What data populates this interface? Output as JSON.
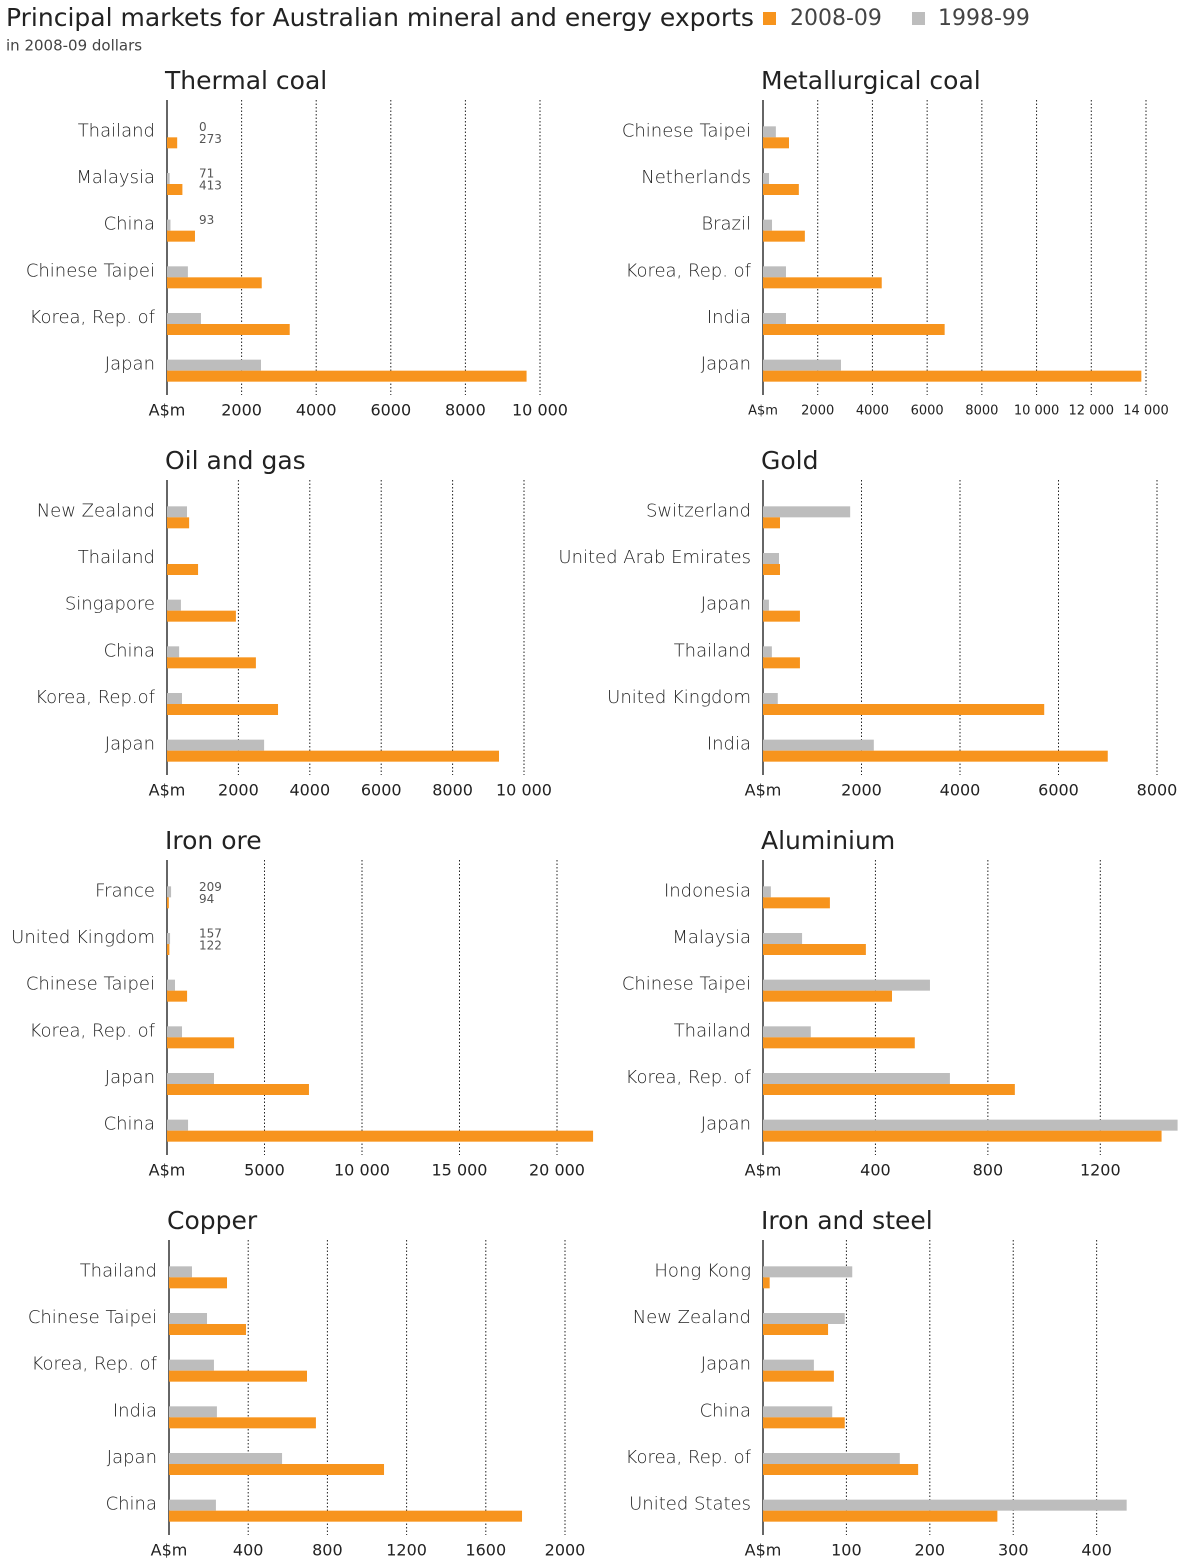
{
  "title": "Principal markets for Australian mineral and energy exports",
  "subtitle": "in 2008-09 dollars",
  "chart_data": [
    {
      "type": "bar",
      "orientation": "horizontal",
      "title": "Thermal coal",
      "categories": [
        "Thailand",
        "Malaysia",
        "China",
        "Chinese  Taipei",
        "Korea, Rep. of",
        "Japan"
      ],
      "series": [
        {
          "name": "2008-09",
          "color": "#f7941d",
          "values": [
            273,
            413,
            750,
            2540,
            3290,
            9640
          ],
          "value_labels": [
            "273",
            "413",
            null,
            null,
            null,
            null
          ]
        },
        {
          "name": "1998-99",
          "color": "#bdbdbd",
          "values": [
            0,
            71,
            93,
            560,
            910,
            2520
          ],
          "value_labels": [
            "0",
            "71",
            "93",
            null,
            null,
            null
          ]
        }
      ],
      "xlim": [
        0,
        10000
      ],
      "xticks": [
        {
          "value": 0,
          "label": "A$m"
        },
        2000,
        4000,
        6000,
        8000,
        {
          "value": 10000,
          "label": "10 000"
        }
      ],
      "grid": true
    },
    {
      "type": "bar",
      "orientation": "horizontal",
      "title": "Metallurgical coal",
      "categories": [
        "Chinese Taipei",
        "Netherlands",
        "Brazil",
        "Korea, Rep. of",
        "India",
        "Japan"
      ],
      "series": [
        {
          "name": "2008-09",
          "color": "#f7941d",
          "values": [
            950,
            1310,
            1530,
            4340,
            6640,
            13830
          ]
        },
        {
          "name": "1998-99",
          "color": "#bdbdbd",
          "values": [
            470,
            220,
            330,
            840,
            840,
            2850
          ]
        }
      ],
      "xlim": [
        0,
        14000
      ],
      "xticks": [
        {
          "value": 0,
          "label": "A$m"
        },
        2000,
        4000,
        6000,
        8000,
        {
          "value": 10000,
          "label": "10 000"
        },
        {
          "value": 12000,
          "label": "12 000"
        },
        {
          "value": 14000,
          "label": "14 000"
        }
      ],
      "grid": true
    },
    {
      "type": "bar",
      "orientation": "horizontal",
      "title": "Oil and gas",
      "categories": [
        "New Zealand",
        "Thailand",
        "Singapore",
        "China",
        "Korea, Rep.of",
        "Japan"
      ],
      "series": [
        {
          "name": "2008-09",
          "color": "#f7941d",
          "values": [
            620,
            870,
            1930,
            2490,
            3110,
            9300
          ]
        },
        {
          "name": "1998-99",
          "color": "#bdbdbd",
          "values": [
            560,
            0,
            390,
            340,
            420,
            2720
          ]
        }
      ],
      "xlim": [
        0,
        10000
      ],
      "xticks": [
        {
          "value": 0,
          "label": "A$m"
        },
        2000,
        4000,
        6000,
        8000,
        {
          "value": 10000,
          "label": "10 000"
        }
      ],
      "grid": true
    },
    {
      "type": "bar",
      "orientation": "horizontal",
      "title": "Gold",
      "categories": [
        "Switzerland",
        "United Arab Emirates",
        "Japan",
        "Thailand",
        "United Kingdom",
        "India"
      ],
      "series": [
        {
          "name": "2008-09",
          "color": "#f7941d",
          "values": [
            345,
            345,
            750,
            750,
            5710,
            7000
          ]
        },
        {
          "name": "1998-99",
          "color": "#bdbdbd",
          "values": [
            1770,
            325,
            120,
            180,
            300,
            2250
          ]
        }
      ],
      "xlim": [
        0,
        8000
      ],
      "xticks": [
        {
          "value": 0,
          "label": "A$m"
        },
        2000,
        4000,
        6000,
        8000
      ],
      "grid": true
    },
    {
      "type": "bar",
      "orientation": "horizontal",
      "title": "Iron ore",
      "categories": [
        "France",
        "United Kingdom",
        "Chinese Taipei",
        "Korea, Rep. of",
        "Japan",
        "China"
      ],
      "series": [
        {
          "name": "2008-09",
          "color": "#f7941d",
          "values": [
            94,
            122,
            1030,
            3440,
            7280,
            21850
          ],
          "value_labels": [
            "94",
            "122",
            null,
            null,
            null,
            null
          ]
        },
        {
          "name": "1998-99",
          "color": "#bdbdbd",
          "values": [
            209,
            157,
            410,
            770,
            2410,
            1080
          ],
          "value_labels": [
            "209",
            "157",
            null,
            null,
            null,
            null
          ]
        }
      ],
      "xlim": [
        0,
        22000
      ],
      "xticks": [
        {
          "value": 0,
          "label": "A$m"
        },
        5000,
        {
          "value": 10000,
          "label": "10 000"
        },
        {
          "value": 15000,
          "label": "15 000"
        },
        {
          "value": 20000,
          "label": "20 000"
        }
      ],
      "grid": true
    },
    {
      "type": "bar",
      "orientation": "horizontal",
      "title": "Aluminium",
      "categories": [
        "Indonesia",
        "Malaysia",
        "Chinese Taipei",
        "Thailand",
        "Korea, Rep. of",
        "Japan"
      ],
      "series": [
        {
          "name": "2008-09",
          "color": "#f7941d",
          "values": [
            238,
            366,
            459,
            540,
            896,
            1418
          ]
        },
        {
          "name": "1998-99",
          "color": "#bdbdbd",
          "values": [
            28,
            139,
            594,
            170,
            665,
            1475
          ]
        }
      ],
      "xlim": [
        0,
        1480
      ],
      "xticks": [
        {
          "value": 0,
          "label": "A$m"
        },
        400,
        800,
        1200
      ],
      "grid": true
    },
    {
      "type": "bar",
      "orientation": "horizontal",
      "title": "Copper",
      "categories": [
        "Thailand",
        "Chinese Taipei",
        "Korea, Rep. of",
        "India",
        "Japan",
        "China"
      ],
      "series": [
        {
          "name": "2008-09",
          "color": "#f7941d",
          "values": [
            293,
            389,
            697,
            742,
            1086,
            1783
          ]
        },
        {
          "name": "1998-99",
          "color": "#bdbdbd",
          "values": [
            116,
            192,
            227,
            242,
            571,
            237
          ]
        }
      ],
      "xlim": [
        0,
        2000
      ],
      "xticks": [
        {
          "value": 0,
          "label": "A$m"
        },
        400,
        800,
        1200,
        1600,
        2000
      ],
      "grid": true
    },
    {
      "type": "bar",
      "orientation": "horizontal",
      "title": "Iron and steel",
      "categories": [
        "Hong Kong",
        "New Zealand",
        "Japan",
        "China",
        "Korea, Rep. of",
        "United States"
      ],
      "series": [
        {
          "name": "2008-09",
          "color": "#f7941d",
          "values": [
            8,
            78,
            85,
            98,
            186,
            281
          ]
        },
        {
          "name": "1998-99",
          "color": "#bdbdbd",
          "values": [
            107,
            98,
            61,
            83,
            164,
            436
          ]
        }
      ],
      "xlim": [
        0,
        440
      ],
      "xticks": [
        {
          "value": 0,
          "label": "A$m"
        },
        100,
        200,
        300,
        400
      ],
      "grid": true
    }
  ]
}
